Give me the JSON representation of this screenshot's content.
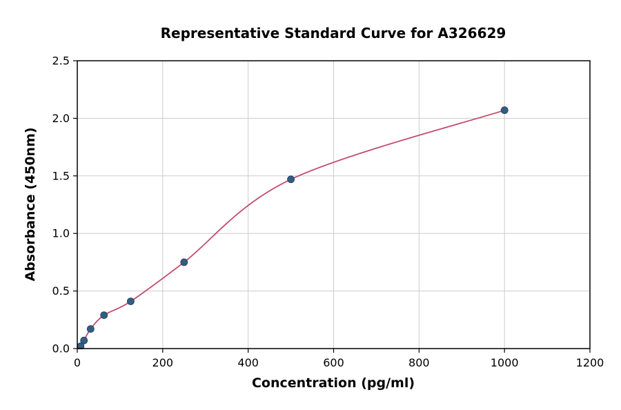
{
  "figure": {
    "background": "#ffffff"
  },
  "chart_data": {
    "type": "scatter",
    "title": "Representative Standard Curve for A326629",
    "xlabel": "Concentration (pg/ml)",
    "ylabel": "Absorbance (450nm)",
    "xlim": [
      0,
      1200
    ],
    "ylim": [
      0,
      2.5
    ],
    "xticks": [
      0,
      200,
      400,
      600,
      800,
      1000,
      1200
    ],
    "xtick_labels": [
      "0",
      "200",
      "400",
      "600",
      "800",
      "1000",
      "1200"
    ],
    "yticks": [
      0,
      0.5,
      1,
      1.5,
      2,
      2.5
    ],
    "ytick_labels": [
      "0.0",
      "0.5",
      "1.0",
      "1.5",
      "2.0",
      "2.5"
    ],
    "grid": true,
    "legend": "none",
    "points": [
      [
        7.8,
        0.02
      ],
      [
        15.6,
        0.07
      ],
      [
        31.2,
        0.17
      ],
      [
        62.5,
        0.29
      ],
      [
        125,
        0.41
      ],
      [
        250,
        0.75
      ],
      [
        500,
        1.47
      ],
      [
        1000,
        2.07
      ]
    ],
    "trend_line": {
      "type": "smooth_fit_curve",
      "x_start": 7.8,
      "x_end": 1000
    },
    "colors": {
      "point": "#355d82",
      "point_edge": "#1f3a57",
      "line": "#c34a6e",
      "grid": "#cccccc",
      "axis": "#000000",
      "background": "#ffffff"
    }
  }
}
